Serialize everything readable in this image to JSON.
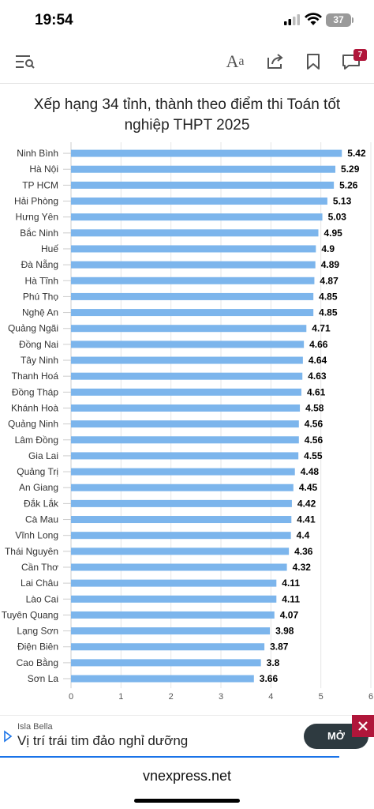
{
  "status_bar": {
    "time": "19:54",
    "battery": "37"
  },
  "toolbar": {
    "menu_icon": "menu-search-icon",
    "font_label_big": "A",
    "font_label_small": "a",
    "share_icon": "share-icon",
    "bookmark_icon": "bookmark-icon",
    "comment_icon": "comment-icon",
    "comment_count": "7"
  },
  "colors": {
    "bar": "#7cb5ec",
    "badge": "#b0163a",
    "ad_button": "#2e3a40",
    "axis": "#cccccc"
  },
  "chart_data": {
    "type": "bar",
    "orientation": "horizontal",
    "title": "Xếp hạng 34 tỉnh, thành theo điểm thi Toán tốt nghiệp THPT 2025",
    "title_lines": [
      "Xếp hạng 34 tỉnh, thành theo điểm thi Toán tốt",
      "nghiệp THPT 2025"
    ],
    "xlabel": "",
    "ylabel": "",
    "xlim": [
      0,
      6
    ],
    "x_ticks": [
      "0",
      "1",
      "2",
      "3",
      "4",
      "5",
      "6"
    ],
    "grid": true,
    "categories": [
      "Ninh Bình",
      "Hà Nội",
      "TP HCM",
      "Hải Phòng",
      "Hưng Yên",
      "Bắc Ninh",
      "Huế",
      "Đà Nẵng",
      "Hà Tĩnh",
      "Phú Thọ",
      "Nghệ An",
      "Quảng Ngãi",
      "Đồng Nai",
      "Tây Ninh",
      "Thanh Hoá",
      "Đồng Tháp",
      "Khánh Hoà",
      "Quảng Ninh",
      "Lâm Đồng",
      "Gia Lai",
      "Quảng Trị",
      "An Giang",
      "Đắk Lắk",
      "Cà Mau",
      "Vĩnh Long",
      "Thái Nguyên",
      "Cần Thơ",
      "Lai Châu",
      "Lào Cai",
      "Tuyên Quang",
      "Lạng Sơn",
      "Điện Biên",
      "Cao Bằng",
      "Sơn La"
    ],
    "values": [
      5.42,
      5.29,
      5.26,
      5.13,
      5.03,
      4.95,
      4.9,
      4.89,
      4.87,
      4.85,
      4.85,
      4.71,
      4.66,
      4.64,
      4.63,
      4.61,
      4.58,
      4.56,
      4.56,
      4.55,
      4.48,
      4.45,
      4.42,
      4.41,
      4.4,
      4.36,
      4.32,
      4.11,
      4.11,
      4.07,
      3.98,
      3.87,
      3.8,
      3.66
    ],
    "value_labels": [
      "5.42",
      "5.29",
      "5.26",
      "5.13",
      "5.03",
      "4.95",
      "4.9",
      "4.89",
      "4.87",
      "4.85",
      "4.85",
      "4.71",
      "4.66",
      "4.64",
      "4.63",
      "4.61",
      "4.58",
      "4.56",
      "4.56",
      "4.55",
      "4.48",
      "4.45",
      "4.42",
      "4.41",
      "4.4",
      "4.36",
      "4.32",
      "4.11",
      "4.11",
      "4.07",
      "3.98",
      "3.87",
      "3.8",
      "3.66"
    ]
  },
  "ad": {
    "brand": "Isla Bella",
    "headline": "Vị trí trái tim đảo nghỉ dưỡng",
    "cta": "MỞ"
  },
  "url": "vnexpress.net"
}
